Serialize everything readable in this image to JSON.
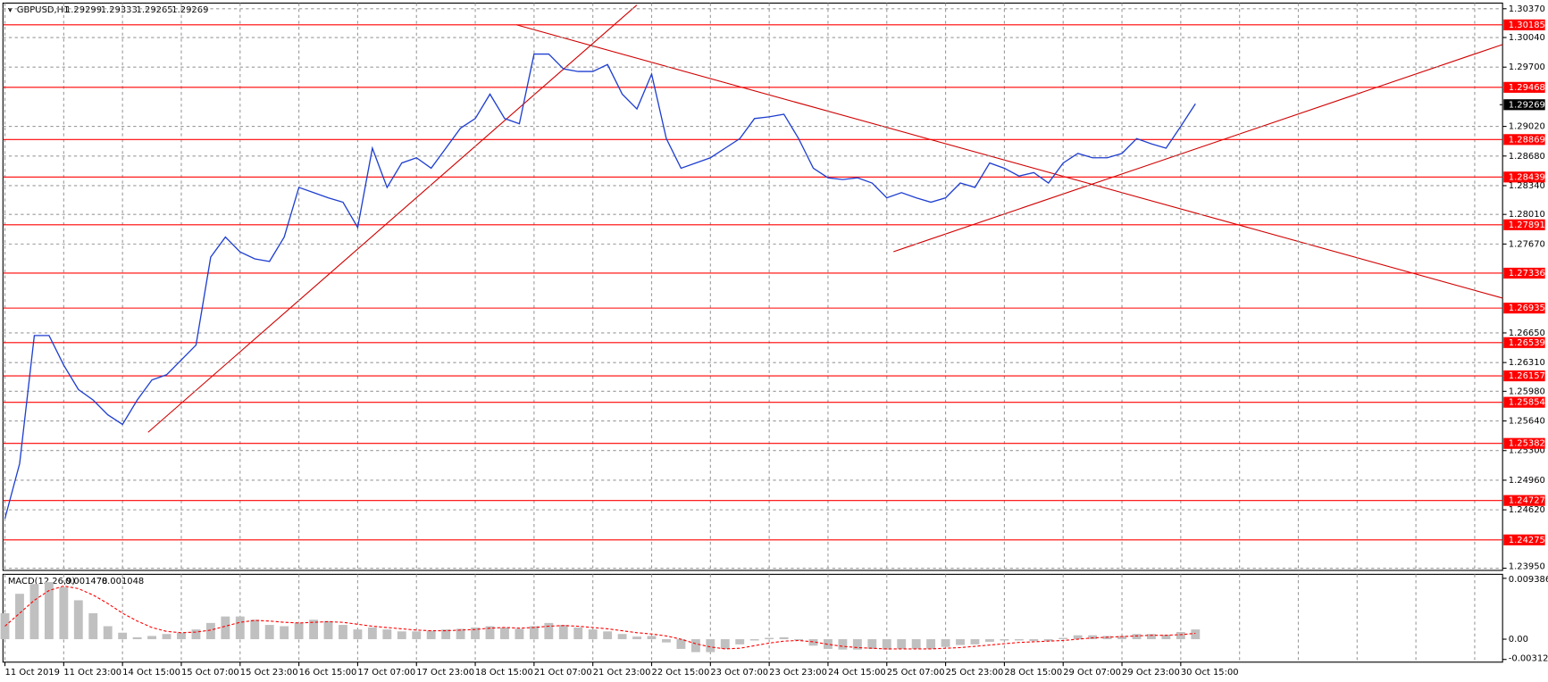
{
  "chart_data": [
    {
      "type": "line",
      "title": "GBPUSD,H1",
      "header_values": [
        1.29299,
        1.29333,
        1.29265,
        1.29269
      ],
      "color": "#1f3fd0",
      "categories": [
        "11 Oct 2019",
        null,
        null,
        null,
        "11 Oct 23:00",
        null,
        null,
        null,
        "14 Oct 15:00",
        null,
        null,
        null,
        "15 Oct 07:00",
        null,
        null,
        null,
        "15 Oct 23:00",
        null,
        null,
        null,
        "16 Oct 15:00",
        null,
        null,
        null,
        "17 Oct 07:00",
        null,
        null,
        null,
        "17 Oct 23:00",
        null,
        null,
        null,
        "18 Oct 15:00",
        null,
        null,
        null,
        "21 Oct 07:00",
        null,
        null,
        null,
        "21 Oct 23:00",
        null,
        null,
        null,
        "22 Oct 15:00",
        null,
        null,
        null,
        "23 Oct 07:00",
        null,
        null,
        null,
        "23 Oct 23:00",
        null,
        null,
        null,
        "24 Oct 15:00",
        null,
        null,
        null,
        "25 Oct 07:00",
        null,
        null,
        null,
        "25 Oct 23:00",
        null,
        null,
        null,
        "28 Oct 15:00",
        null,
        null,
        null,
        "29 Oct 07:00",
        null,
        null,
        null,
        "29 Oct 23:00",
        null,
        null,
        null,
        "30 Oct 15:00",
        null
      ],
      "values": [
        1.2452,
        1.2515,
        1.2662,
        1.2662,
        1.2628,
        1.26,
        1.2588,
        1.2571,
        1.256,
        1.2588,
        1.2611,
        1.2617,
        1.2634,
        1.2651,
        1.2752,
        1.2775,
        1.2758,
        1.275,
        1.2747,
        1.2775,
        1.2832,
        1.2826,
        1.282,
        1.2815,
        1.2786,
        1.2877,
        1.2832,
        1.286,
        1.2866,
        1.2854,
        1.2877,
        1.29,
        1.2911,
        1.2939,
        1.2911,
        1.2905,
        1.2985,
        1.2985,
        1.2968,
        1.2965,
        1.2965,
        1.2973,
        1.2939,
        1.2922,
        1.2962,
        1.2888,
        1.2854,
        1.286,
        1.2866,
        1.2877,
        1.2888,
        1.2911,
        1.2913,
        1.2916,
        1.2888,
        1.2854,
        1.2843,
        1.2841,
        1.2843,
        1.2837,
        1.282,
        1.2826,
        1.282,
        1.2815,
        1.282,
        1.2837,
        1.2832,
        1.286,
        1.2854,
        1.2845,
        1.2849,
        1.2837,
        1.286,
        1.2871,
        1.2866,
        1.2866,
        1.2871,
        1.2888,
        1.2882,
        1.2877,
        1.2902,
        1.2928
      ],
      "ylim": [
        1.23925,
        1.30435
      ],
      "yticks": [
        {
          "value": 1.3037,
          "label": "1.30370"
        },
        {
          "value": 1.3004,
          "label": "1.30040"
        },
        {
          "value": 1.297,
          "label": "1.29700"
        },
        {
          "value": 1.2902,
          "label": "1.29020"
        },
        {
          "value": 1.2868,
          "label": "1.28680"
        },
        {
          "value": 1.2834,
          "label": "1.28340"
        },
        {
          "value": 1.2801,
          "label": "1.28010"
        },
        {
          "value": 1.2767,
          "label": "1.27670"
        },
        {
          "value": 1.2665,
          "label": "1.26650"
        },
        {
          "value": 1.2631,
          "label": "1.26310"
        },
        {
          "value": 1.2598,
          "label": "1.25980"
        },
        {
          "value": 1.2564,
          "label": "1.25640"
        },
        {
          "value": 1.253,
          "label": "1.25300"
        },
        {
          "value": 1.2496,
          "label": "1.24960"
        },
        {
          "value": 1.2462,
          "label": "1.24620"
        },
        {
          "value": 1.2395,
          "label": "1.23950"
        }
      ],
      "levels": [
        1.30185,
        1.29468,
        1.28869,
        1.28439,
        1.27891,
        1.27336,
        1.26935,
        1.26539,
        1.26157,
        1.25854,
        1.25382,
        1.24727,
        1.24275
      ],
      "level_color": "#ff0000",
      "grid": true
    },
    {
      "type": "bar",
      "title": "MACD(12,26,9)",
      "header_values": [
        0.001478,
        0.001048
      ],
      "series": [
        {
          "style": "histogram",
          "color": "#c0c0c0",
          "values": [
            0.004,
            0.007,
            0.0085,
            0.0088,
            0.008,
            0.006,
            0.004,
            0.002,
            0.001,
            0.0003,
            0.0005,
            0.0008,
            0.001,
            0.0015,
            0.0025,
            0.0035,
            0.0035,
            0.003,
            0.0022,
            0.002,
            0.0025,
            0.003,
            0.0028,
            0.0022,
            0.0015,
            0.0018,
            0.0015,
            0.0012,
            0.0012,
            0.0013,
            0.0015,
            0.0016,
            0.0018,
            0.002,
            0.0018,
            0.0016,
            0.002,
            0.0025,
            0.0022,
            0.0018,
            0.0015,
            0.0012,
            0.0008,
            0.0004,
            0.0005,
            -0.0005,
            -0.0015,
            -0.002,
            -0.002,
            -0.0015,
            -0.0008,
            -0.0002,
            0.0002,
            0.0003,
            -0.0002,
            -0.001,
            -0.0015,
            -0.0016,
            -0.0016,
            -0.0015,
            -0.0016,
            -0.0015,
            -0.0015,
            -0.0015,
            -0.0012,
            -0.0009,
            -0.0008,
            -0.0004,
            -0.0002,
            -0.0002,
            -0.0003,
            -0.0003,
            0.0002,
            0.0006,
            0.0006,
            0.0005,
            0.0005,
            0.0008,
            0.0008,
            0.0007,
            0.0011,
            0.0015
          ]
        },
        {
          "style": "dashed",
          "color": "#ff0000",
          "values": [
            0.002,
            0.004,
            0.006,
            0.0075,
            0.0082,
            0.0078,
            0.0068,
            0.0055,
            0.004,
            0.0028,
            0.0018,
            0.0012,
            0.001,
            0.0011,
            0.0014,
            0.002,
            0.0026,
            0.0029,
            0.0028,
            0.0026,
            0.0025,
            0.0026,
            0.0027,
            0.0026,
            0.0023,
            0.002,
            0.0018,
            0.0016,
            0.0014,
            0.0013,
            0.0013,
            0.0014,
            0.0015,
            0.0017,
            0.0018,
            0.0017,
            0.0018,
            0.002,
            0.0021,
            0.002,
            0.0018,
            0.0016,
            0.0013,
            0.001,
            0.0008,
            0.0005,
            0,
            -0.0007,
            -0.0012,
            -0.0015,
            -0.0014,
            -0.001,
            -0.0006,
            -0.0003,
            -0.0002,
            -0.0004,
            -0.0008,
            -0.0011,
            -0.0013,
            -0.0014,
            -0.0015,
            -0.0015,
            -0.0015,
            -0.0015,
            -0.0014,
            -0.0013,
            -0.0011,
            -0.0009,
            -0.0007,
            -0.0005,
            -0.0004,
            -0.0003,
            -0.0002,
            0,
            0.0002,
            0.0003,
            0.0004,
            0.0005,
            0.0006,
            0.0006,
            0.0007,
            0.0009
          ]
        }
      ],
      "ylim": [
        -0.00354,
        0.01
      ],
      "yticks": [
        0.009386,
        {
          "value": 0,
          "label": "0.00"
        },
        -0.003123
      ]
    }
  ]
}
